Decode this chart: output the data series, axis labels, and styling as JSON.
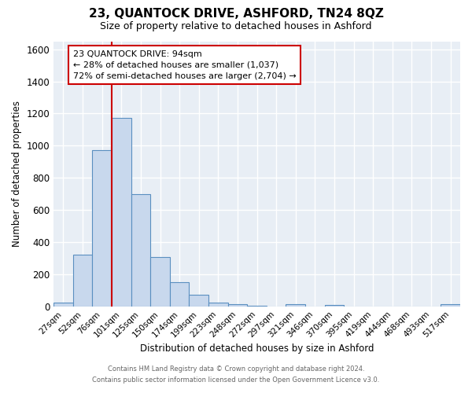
{
  "title": "23, QUANTOCK DRIVE, ASHFORD, TN24 8QZ",
  "subtitle": "Size of property relative to detached houses in Ashford",
  "xlabel": "Distribution of detached houses by size in Ashford",
  "ylabel": "Number of detached properties",
  "bar_labels": [
    "27sqm",
    "52sqm",
    "76sqm",
    "101sqm",
    "125sqm",
    "150sqm",
    "174sqm",
    "199sqm",
    "223sqm",
    "248sqm",
    "272sqm",
    "297sqm",
    "321sqm",
    "346sqm",
    "370sqm",
    "395sqm",
    "419sqm",
    "444sqm",
    "468sqm",
    "493sqm",
    "517sqm"
  ],
  "bar_values": [
    25,
    320,
    970,
    1175,
    700,
    305,
    150,
    70,
    25,
    15,
    5,
    0,
    15,
    0,
    10,
    0,
    0,
    0,
    0,
    0,
    15
  ],
  "bar_color": "#c8d8ed",
  "bar_edge_color": "#5a8fc0",
  "vline_color": "#cc0000",
  "vline_x": 3,
  "ylim": [
    0,
    1650
  ],
  "yticks": [
    0,
    200,
    400,
    600,
    800,
    1000,
    1200,
    1400,
    1600
  ],
  "annotation_line1": "23 QUANTOCK DRIVE: 94sqm",
  "annotation_line2": "← 28% of detached houses are smaller (1,037)",
  "annotation_line3": "72% of semi-detached houses are larger (2,704) →",
  "annotation_box_color": "#ffffff",
  "annotation_box_edge": "#cc0000",
  "footer_line1": "Contains HM Land Registry data © Crown copyright and database right 2024.",
  "footer_line2": "Contains public sector information licensed under the Open Government Licence v3.0.",
  "plot_bg_color": "#e8eef5",
  "fig_bg_color": "#ffffff",
  "grid_color": "#ffffff",
  "title_fontsize": 11,
  "subtitle_fontsize": 9
}
